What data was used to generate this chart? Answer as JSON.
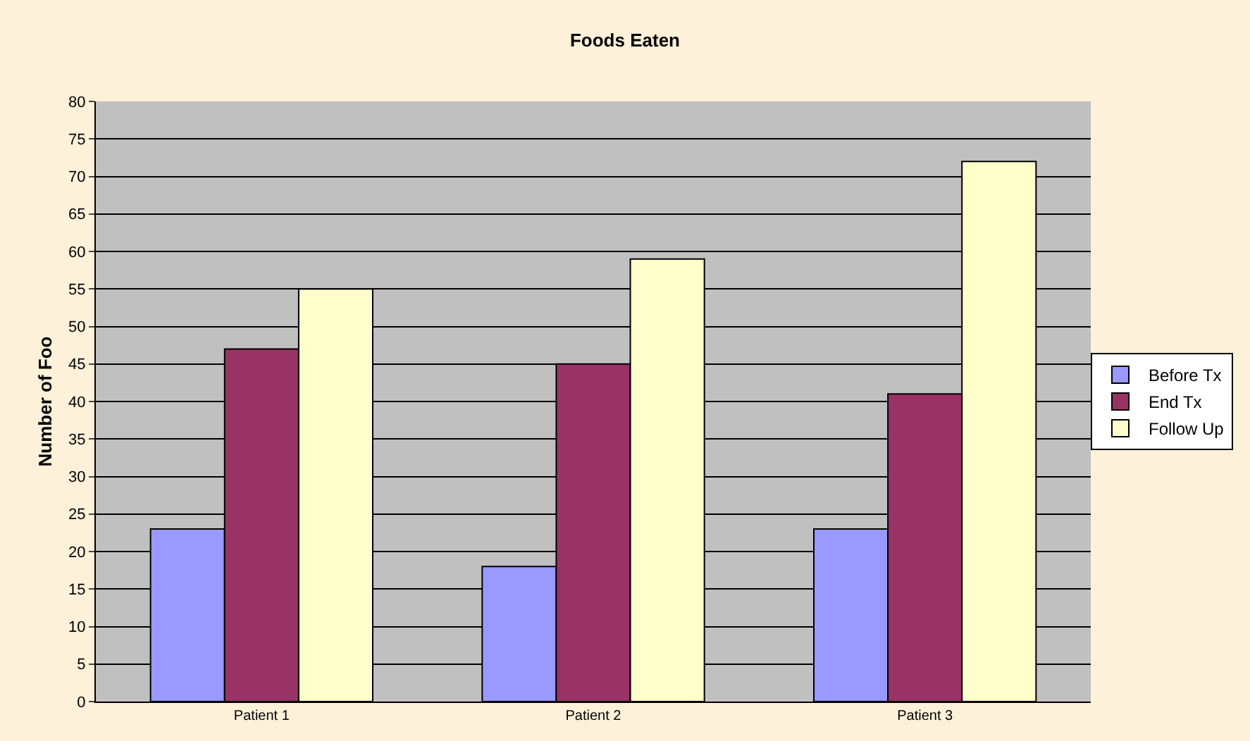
{
  "chart_data": {
    "type": "bar",
    "title": "Foods Eaten",
    "ylabel": "Number of Foo",
    "categories": [
      "Patient 1",
      "Patient 2",
      "Patient 3"
    ],
    "series": [
      {
        "name": "Before Tx",
        "color": "#9999ff",
        "values": [
          23,
          18,
          23
        ]
      },
      {
        "name": "End Tx",
        "color": "#993366",
        "values": [
          47,
          45,
          41
        ]
      },
      {
        "name": "Follow Up",
        "color": "#ffffcc",
        "values": [
          55,
          59,
          72
        ]
      }
    ],
    "ylim": [
      0,
      80
    ],
    "yticks": [
      0,
      5,
      10,
      15,
      20,
      25,
      30,
      35,
      40,
      45,
      50,
      55,
      60,
      65,
      70,
      75,
      80
    ],
    "grid": "y",
    "legend": "right"
  }
}
